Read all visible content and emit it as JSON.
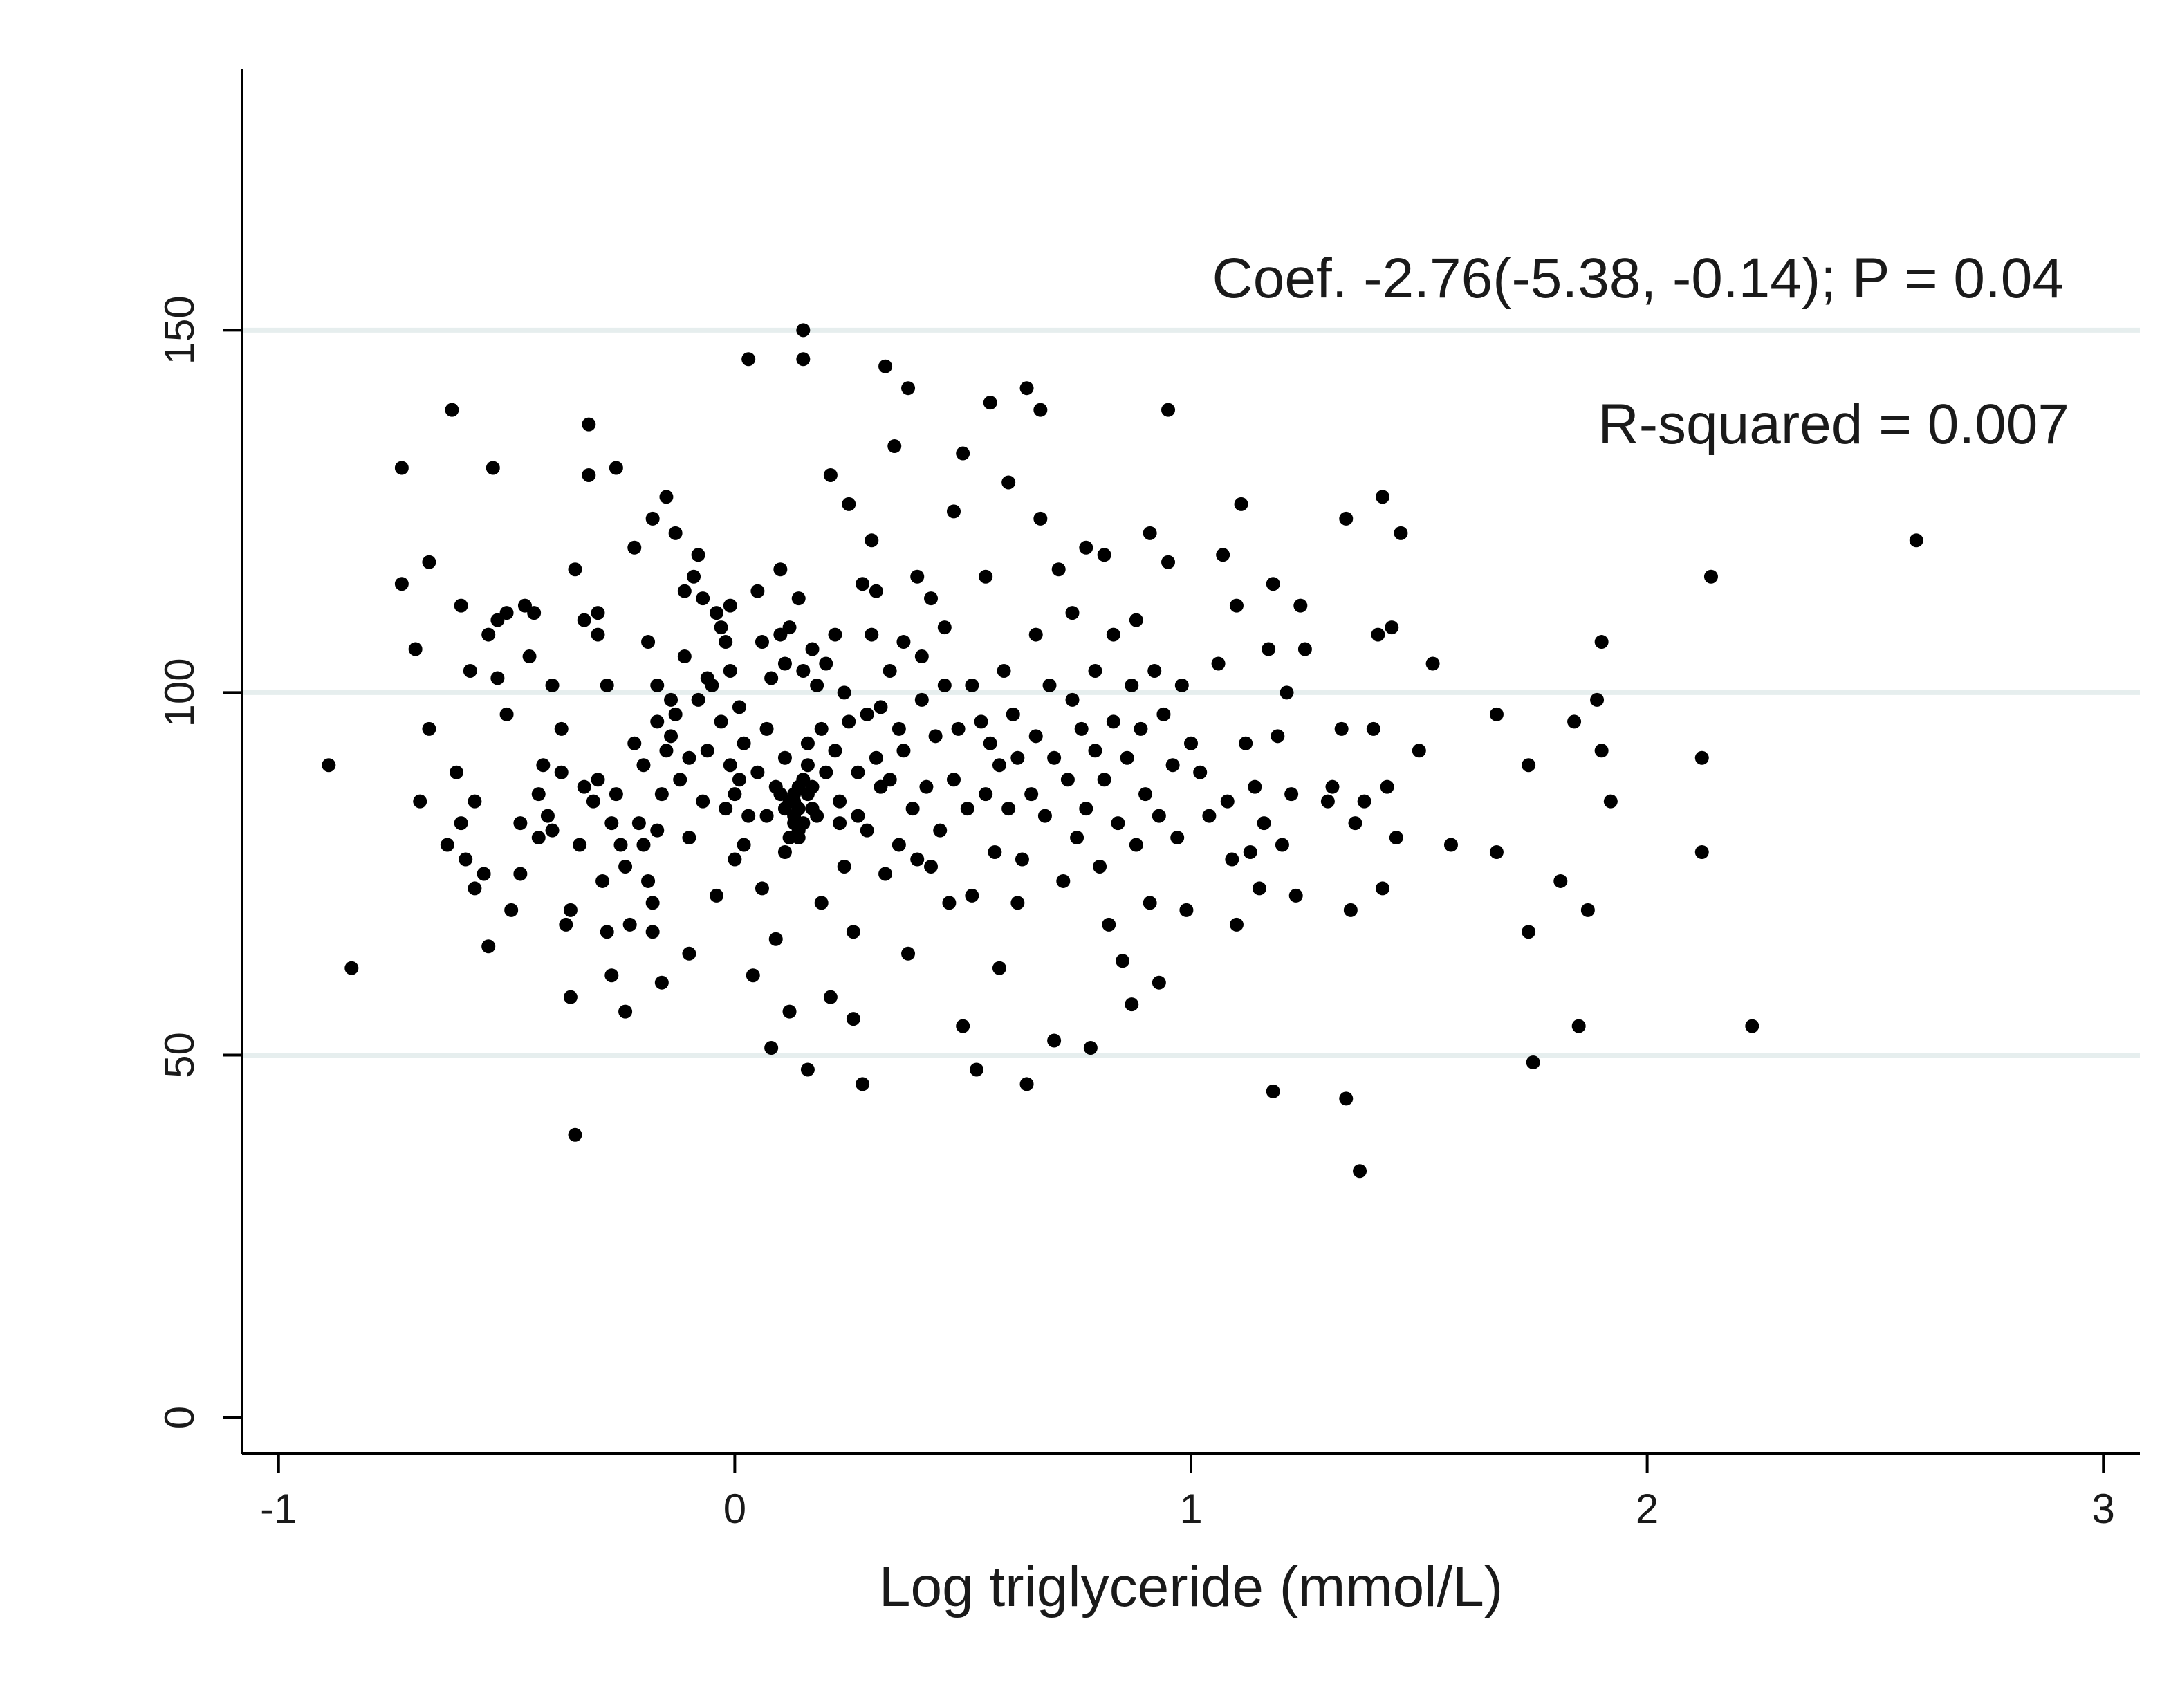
{
  "chart_data": {
    "type": "scatter",
    "title": "",
    "xlabel": "Log triglyceride (mmol/L)",
    "ylabel": "",
    "xlim": [
      -1.08,
      3.08
    ],
    "ylim": [
      -5,
      186
    ],
    "x_ticks": [
      {
        "value": -1,
        "label": "-1"
      },
      {
        "value": 0,
        "label": "0"
      },
      {
        "value": 1,
        "label": "1"
      },
      {
        "value": 2,
        "label": "2"
      },
      {
        "value": 3,
        "label": "3"
      }
    ],
    "y_ticks": [
      {
        "value": 0,
        "label": "0"
      },
      {
        "value": 50,
        "label": "50"
      },
      {
        "value": 100,
        "label": "100"
      },
      {
        "value": 150,
        "label": "150"
      }
    ],
    "grid": "horizontal at 50, 100, 150",
    "annotations": {
      "coef": "Coef. -2.76(-5.38, -0.14); P = 0.04",
      "r_squared": "R-squared = 0.007"
    },
    "points": [
      [
        -0.89,
        90
      ],
      [
        -0.84,
        62
      ],
      [
        -0.73,
        131
      ],
      [
        -0.73,
        115
      ],
      [
        -0.7,
        106
      ],
      [
        -0.69,
        85
      ],
      [
        -0.67,
        118
      ],
      [
        -0.67,
        95
      ],
      [
        -0.63,
        79
      ],
      [
        -0.62,
        139
      ],
      [
        -0.61,
        89
      ],
      [
        -0.6,
        112
      ],
      [
        -0.6,
        82
      ],
      [
        -0.59,
        77
      ],
      [
        -0.58,
        103
      ],
      [
        -0.57,
        85
      ],
      [
        -0.57,
        73
      ],
      [
        -0.55,
        75
      ],
      [
        -0.54,
        65
      ],
      [
        -0.54,
        108
      ],
      [
        -0.53,
        131
      ],
      [
        -0.52,
        102
      ],
      [
        -0.52,
        110
      ],
      [
        -0.5,
        97
      ],
      [
        -0.5,
        111
      ],
      [
        -0.49,
        70
      ],
      [
        -0.47,
        82
      ],
      [
        -0.47,
        75
      ],
      [
        -0.46,
        112
      ],
      [
        -0.45,
        105
      ],
      [
        -0.44,
        111
      ],
      [
        -0.43,
        86
      ],
      [
        -0.43,
        80
      ],
      [
        -0.42,
        90
      ],
      [
        -0.41,
        83
      ],
      [
        -0.4,
        101
      ],
      [
        -0.4,
        81
      ],
      [
        -0.38,
        89
      ],
      [
        -0.38,
        95
      ],
      [
        -0.37,
        68
      ],
      [
        -0.36,
        70
      ],
      [
        -0.36,
        58
      ],
      [
        -0.35,
        39
      ],
      [
        -0.35,
        117
      ],
      [
        -0.34,
        79
      ],
      [
        -0.33,
        87
      ],
      [
        -0.33,
        110
      ],
      [
        -0.32,
        137
      ],
      [
        -0.32,
        130
      ],
      [
        -0.31,
        85
      ],
      [
        -0.3,
        108
      ],
      [
        -0.3,
        88
      ],
      [
        -0.3,
        111
      ],
      [
        -0.29,
        74
      ],
      [
        -0.28,
        67
      ],
      [
        -0.28,
        101
      ],
      [
        -0.27,
        82
      ],
      [
        -0.27,
        61
      ],
      [
        -0.26,
        86
      ],
      [
        -0.26,
        131
      ],
      [
        -0.25,
        79
      ],
      [
        -0.24,
        76
      ],
      [
        -0.24,
        56
      ],
      [
        -0.23,
        68
      ],
      [
        -0.22,
        120
      ],
      [
        -0.22,
        93
      ],
      [
        -0.21,
        82
      ],
      [
        -0.2,
        79
      ],
      [
        -0.2,
        90
      ],
      [
        -0.19,
        74
      ],
      [
        -0.19,
        107
      ],
      [
        -0.18,
        124
      ],
      [
        -0.18,
        67
      ],
      [
        -0.18,
        71
      ],
      [
        -0.17,
        96
      ],
      [
        -0.17,
        101
      ],
      [
        -0.17,
        81
      ],
      [
        -0.16,
        86
      ],
      [
        -0.16,
        60
      ],
      [
        -0.15,
        92
      ],
      [
        -0.15,
        127
      ],
      [
        -0.14,
        99
      ],
      [
        -0.14,
        94
      ],
      [
        -0.13,
        122
      ],
      [
        -0.13,
        97
      ],
      [
        -0.12,
        88
      ],
      [
        -0.11,
        114
      ],
      [
        -0.11,
        105
      ],
      [
        -0.1,
        91
      ],
      [
        -0.1,
        64
      ],
      [
        -0.1,
        80
      ],
      [
        -0.09,
        116
      ],
      [
        -0.08,
        99
      ],
      [
        -0.08,
        119
      ],
      [
        -0.07,
        113
      ],
      [
        -0.07,
        85
      ],
      [
        -0.06,
        92
      ],
      [
        -0.06,
        102
      ],
      [
        -0.05,
        101
      ],
      [
        -0.04,
        72
      ],
      [
        -0.04,
        111
      ],
      [
        -0.03,
        109
      ],
      [
        -0.03,
        96
      ],
      [
        -0.02,
        84
      ],
      [
        -0.02,
        107
      ],
      [
        -0.01,
        103
      ],
      [
        -0.01,
        90
      ],
      [
        -0.01,
        112
      ],
      [
        0.0,
        86
      ],
      [
        0.0,
        77
      ],
      [
        0.01,
        88
      ],
      [
        0.01,
        98
      ],
      [
        0.02,
        93
      ],
      [
        0.02,
        79
      ],
      [
        0.03,
        83
      ],
      [
        0.03,
        146
      ],
      [
        0.04,
        61
      ],
      [
        0.05,
        89
      ],
      [
        0.05,
        114
      ],
      [
        0.06,
        107
      ],
      [
        0.06,
        73
      ],
      [
        0.07,
        95
      ],
      [
        0.07,
        83
      ],
      [
        0.08,
        102
      ],
      [
        0.08,
        51
      ],
      [
        0.09,
        87
      ],
      [
        0.09,
        66
      ],
      [
        0.1,
        108
      ],
      [
        0.1,
        117
      ],
      [
        0.11,
        104
      ],
      [
        0.11,
        78
      ],
      [
        0.11,
        91
      ],
      [
        0.12,
        85
      ],
      [
        0.12,
        109
      ],
      [
        0.12,
        56
      ],
      [
        0.13,
        82
      ],
      [
        0.13,
        86
      ],
      [
        0.14,
        84
      ],
      [
        0.14,
        80
      ],
      [
        0.14,
        113
      ],
      [
        0.15,
        103
      ],
      [
        0.15,
        150
      ],
      [
        0.15,
        146
      ],
      [
        0.16,
        93
      ],
      [
        0.16,
        90
      ],
      [
        0.16,
        48
      ],
      [
        0.17,
        87
      ],
      [
        0.17,
        106
      ],
      [
        0.18,
        101
      ],
      [
        0.18,
        83
      ],
      [
        0.19,
        71
      ],
      [
        0.19,
        95
      ],
      [
        0.2,
        104
      ],
      [
        0.2,
        89
      ],
      [
        0.21,
        58
      ],
      [
        0.21,
        130
      ],
      [
        0.22,
        92
      ],
      [
        0.22,
        108
      ],
      [
        0.23,
        82
      ],
      [
        0.23,
        85
      ],
      [
        0.24,
        100
      ],
      [
        0.24,
        76
      ],
      [
        0.25,
        126
      ],
      [
        0.25,
        96
      ],
      [
        0.26,
        67
      ],
      [
        0.26,
        55
      ],
      [
        0.27,
        83
      ],
      [
        0.27,
        89
      ],
      [
        0.28,
        115
      ],
      [
        0.28,
        46
      ],
      [
        0.29,
        97
      ],
      [
        0.29,
        81
      ],
      [
        0.3,
        121
      ],
      [
        0.3,
        108
      ],
      [
        0.31,
        91
      ],
      [
        0.31,
        114
      ],
      [
        0.32,
        87
      ],
      [
        0.32,
        98
      ],
      [
        0.33,
        145
      ],
      [
        0.33,
        75
      ],
      [
        0.34,
        88
      ],
      [
        0.34,
        103
      ],
      [
        0.35,
        134
      ],
      [
        0.36,
        95
      ],
      [
        0.36,
        79
      ],
      [
        0.37,
        92
      ],
      [
        0.37,
        107
      ],
      [
        0.38,
        64
      ],
      [
        0.38,
        142
      ],
      [
        0.39,
        84
      ],
      [
        0.4,
        116
      ],
      [
        0.4,
        77
      ],
      [
        0.41,
        99
      ],
      [
        0.41,
        105
      ],
      [
        0.42,
        87
      ],
      [
        0.43,
        113
      ],
      [
        0.43,
        76
      ],
      [
        0.44,
        94
      ],
      [
        0.45,
        81
      ],
      [
        0.46,
        109
      ],
      [
        0.46,
        101
      ],
      [
        0.47,
        71
      ],
      [
        0.48,
        125
      ],
      [
        0.48,
        88
      ],
      [
        0.49,
        95
      ],
      [
        0.5,
        133
      ],
      [
        0.5,
        54
      ],
      [
        0.51,
        84
      ],
      [
        0.52,
        72
      ],
      [
        0.52,
        101
      ],
      [
        0.53,
        48
      ],
      [
        0.54,
        96
      ],
      [
        0.55,
        116
      ],
      [
        0.55,
        86
      ],
      [
        0.56,
        140
      ],
      [
        0.56,
        93
      ],
      [
        0.57,
        78
      ],
      [
        0.58,
        62
      ],
      [
        0.58,
        90
      ],
      [
        0.59,
        103
      ],
      [
        0.6,
        129
      ],
      [
        0.6,
        84
      ],
      [
        0.61,
        97
      ],
      [
        0.62,
        71
      ],
      [
        0.62,
        91
      ],
      [
        0.63,
        77
      ],
      [
        0.64,
        46
      ],
      [
        0.64,
        142
      ],
      [
        0.65,
        86
      ],
      [
        0.66,
        108
      ],
      [
        0.66,
        94
      ],
      [
        0.67,
        124
      ],
      [
        0.67,
        139
      ],
      [
        0.68,
        83
      ],
      [
        0.69,
        101
      ],
      [
        0.7,
        52
      ],
      [
        0.7,
        91
      ],
      [
        0.71,
        117
      ],
      [
        0.72,
        74
      ],
      [
        0.73,
        88
      ],
      [
        0.74,
        99
      ],
      [
        0.74,
        111
      ],
      [
        0.75,
        80
      ],
      [
        0.76,
        95
      ],
      [
        0.77,
        120
      ],
      [
        0.77,
        84
      ],
      [
        0.78,
        51
      ],
      [
        0.79,
        92
      ],
      [
        0.79,
        103
      ],
      [
        0.8,
        76
      ],
      [
        0.81,
        119
      ],
      [
        0.81,
        88
      ],
      [
        0.82,
        68
      ],
      [
        0.83,
        96
      ],
      [
        0.83,
        108
      ],
      [
        0.84,
        82
      ],
      [
        0.85,
        63
      ],
      [
        0.86,
        91
      ],
      [
        0.87,
        57
      ],
      [
        0.87,
        101
      ],
      [
        0.88,
        79
      ],
      [
        0.88,
        110
      ],
      [
        0.89,
        95
      ],
      [
        0.9,
        86
      ],
      [
        0.91,
        122
      ],
      [
        0.91,
        71
      ],
      [
        0.92,
        103
      ],
      [
        0.93,
        83
      ],
      [
        0.93,
        60
      ],
      [
        0.94,
        97
      ],
      [
        0.95,
        118
      ],
      [
        0.95,
        139
      ],
      [
        0.96,
        90
      ],
      [
        0.97,
        80
      ],
      [
        0.98,
        101
      ],
      [
        0.99,
        70
      ],
      [
        1.0,
        93
      ],
      [
        1.02,
        89
      ],
      [
        1.04,
        83
      ],
      [
        1.06,
        104
      ],
      [
        1.07,
        119
      ],
      [
        1.08,
        85
      ],
      [
        1.09,
        77
      ],
      [
        1.1,
        112
      ],
      [
        1.1,
        68
      ],
      [
        1.11,
        126
      ],
      [
        1.12,
        93
      ],
      [
        1.13,
        78
      ],
      [
        1.14,
        87
      ],
      [
        1.15,
        73
      ],
      [
        1.16,
        82
      ],
      [
        1.17,
        106
      ],
      [
        1.18,
        115
      ],
      [
        1.18,
        45
      ],
      [
        1.19,
        94
      ],
      [
        1.2,
        79
      ],
      [
        1.21,
        100
      ],
      [
        1.22,
        86
      ],
      [
        1.23,
        72
      ],
      [
        1.24,
        112
      ],
      [
        1.25,
        106
      ],
      [
        1.3,
        85
      ],
      [
        1.31,
        87
      ],
      [
        1.33,
        95
      ],
      [
        1.34,
        44
      ],
      [
        1.34,
        124
      ],
      [
        1.35,
        70
      ],
      [
        1.36,
        82
      ],
      [
        1.37,
        34
      ],
      [
        1.38,
        85
      ],
      [
        1.4,
        95
      ],
      [
        1.41,
        108
      ],
      [
        1.42,
        73
      ],
      [
        1.42,
        127
      ],
      [
        1.43,
        87
      ],
      [
        1.44,
        109
      ],
      [
        1.45,
        80
      ],
      [
        1.46,
        122
      ],
      [
        1.5,
        92
      ],
      [
        1.53,
        104
      ],
      [
        1.57,
        79
      ],
      [
        1.67,
        97
      ],
      [
        1.67,
        78
      ],
      [
        1.74,
        67
      ],
      [
        1.74,
        90
      ],
      [
        1.75,
        49
      ],
      [
        1.81,
        74
      ],
      [
        1.84,
        96
      ],
      [
        1.85,
        54
      ],
      [
        1.87,
        70
      ],
      [
        1.89,
        99
      ],
      [
        1.9,
        107
      ],
      [
        1.9,
        92
      ],
      [
        1.92,
        85
      ],
      [
        2.12,
        91
      ],
      [
        2.12,
        78
      ],
      [
        2.14,
        116
      ],
      [
        2.23,
        54
      ],
      [
        2.59,
        121
      ],
      [
        0.11,
        84
      ],
      [
        0.13,
        83
      ],
      [
        0.14,
        87
      ],
      [
        0.15,
        82
      ],
      [
        0.12,
        80
      ],
      [
        0.16,
        86
      ],
      [
        0.13,
        85
      ],
      [
        0.1,
        86
      ],
      [
        0.17,
        84
      ],
      [
        0.14,
        81
      ],
      [
        0.15,
        88
      ]
    ]
  }
}
